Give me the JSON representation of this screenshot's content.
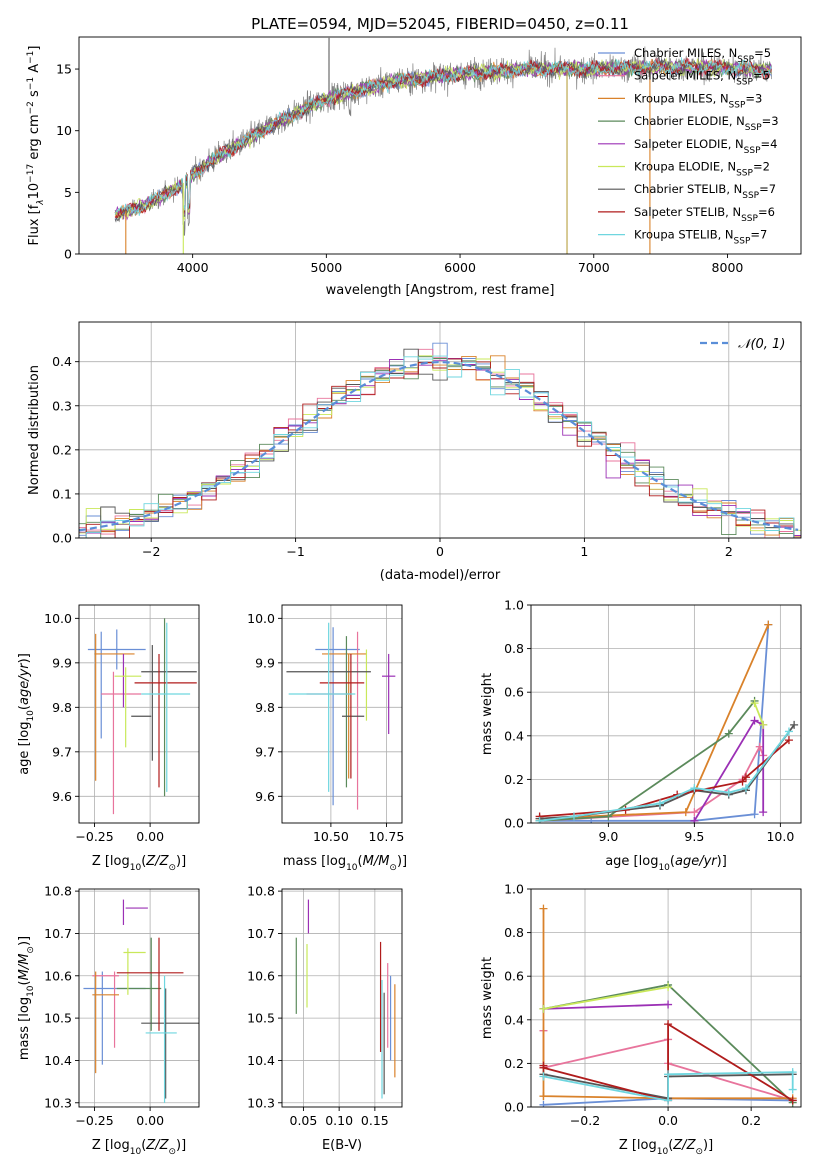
{
  "palette": {
    "Chabrier MILES": "#6a8fd6",
    "Salpeter MILES": "#e8749c",
    "Kroupa MILES": "#d9822b",
    "Chabrier ELODIE": "#5b8a5b",
    "Salpeter ELODIE": "#9b30b5",
    "Kroupa ELODIE": "#c9e85a",
    "Chabrier STELIB": "#555555",
    "Salpeter STELIB": "#b01c1c",
    "Kroupa STELIB": "#6fd6df"
  },
  "chart_data": [
    {
      "id": "spectrum",
      "type": "line",
      "title": "PLATE=0594, MJD=52045, FIBERID=0450, z=0.11",
      "xlabel": "wavelength [Angstrom, rest frame]",
      "ylabel_parts": {
        "flux": "Flux [f",
        "lambda": "λ",
        "exp": "10",
        "expsup": "−17",
        "units": " erg cm",
        "usup1": "−2",
        "s": " s",
        "usup2": "−1",
        "a": " A",
        "usup3": "−1",
        "close": "]"
      },
      "xlim": [
        3150,
        8550
      ],
      "ylim": [
        0,
        17.6
      ],
      "xticks": [
        4000,
        5000,
        6000,
        7000,
        8000
      ],
      "yticks": [
        0,
        5,
        10,
        15
      ],
      "data_range": [
        3420,
        8330
      ],
      "legend_position": "top-right",
      "legend": [
        {
          "label": "Chabrier MILES, N",
          "sub": "SSP",
          "suffix": "=5"
        },
        {
          "label": "Salpeter MILES, N",
          "sub": "SSP",
          "suffix": "=5"
        },
        {
          "label": "Kroupa MILES, N",
          "sub": "SSP",
          "suffix": "=3"
        },
        {
          "label": "Chabrier ELODIE, N",
          "sub": "SSP",
          "suffix": "=3"
        },
        {
          "label": "Salpeter ELODIE, N",
          "sub": "SSP",
          "suffix": "=4"
        },
        {
          "label": "Kroupa ELODIE, N",
          "sub": "SSP",
          "suffix": "=2"
        },
        {
          "label": "Chabrier STELIB, N",
          "sub": "SSP",
          "suffix": "=7"
        },
        {
          "label": "Salpeter STELIB, N",
          "sub": "SSP",
          "suffix": "=6"
        },
        {
          "label": "Kroupa STELIB, N",
          "sub": "SSP",
          "suffix": "=7"
        }
      ],
      "continuum_knots": [
        [
          3420,
          3.2
        ],
        [
          3650,
          4.0
        ],
        [
          3900,
          5.5
        ],
        [
          4100,
          7.3
        ],
        [
          4300,
          8.6
        ],
        [
          4600,
          10.5
        ],
        [
          5000,
          12.6
        ],
        [
          5500,
          14.0
        ],
        [
          6000,
          14.6
        ],
        [
          6500,
          15.0
        ],
        [
          7000,
          15.0
        ],
        [
          7500,
          15.2
        ],
        [
          8000,
          15.1
        ],
        [
          8330,
          14.9
        ]
      ]
    },
    {
      "id": "residuals",
      "type": "histogram",
      "xlabel": "(data-model)/error",
      "ylabel": "Normed distribution",
      "xlim": [
        -2.5,
        2.5
      ],
      "ylim": [
        0,
        0.49
      ],
      "xticks": [
        -2,
        -1,
        0,
        1,
        2
      ],
      "yticks": [
        0.0,
        0.1,
        0.2,
        0.3,
        0.4
      ],
      "grid": true,
      "legend_position": "top-right",
      "reference_label": "𝒩(0, 1)",
      "bin_width": 0.1
    },
    {
      "id": "age_vs_Z",
      "type": "errorbar",
      "xlabel": "Z [log₁₀(Z/Z☉)]",
      "ylabel": "age  [log₁₀(age/yr)]",
      "xlim": [
        -0.32,
        0.22
      ],
      "ylim": [
        9.54,
        10.03
      ],
      "xticks": [
        -0.25,
        0.0
      ],
      "yticks": [
        9.6,
        9.7,
        9.8,
        9.9,
        10.0
      ],
      "grid": true,
      "points": [
        {
          "m": "Chabrier MILES",
          "x": -0.15,
          "xerr": 0.13,
          "y": 9.93,
          "yerr": 0.045
        },
        {
          "m": "Chabrier MILES",
          "x": -0.22,
          "xerr": 0.005,
          "y": 9.85,
          "yerr": 0.12
        },
        {
          "m": "Salpeter MILES",
          "x": -0.13,
          "xerr": 0.09,
          "y": 9.83,
          "yerr": 0.0
        },
        {
          "m": "Salpeter MILES",
          "x": -0.165,
          "xerr": 0.005,
          "y": 9.72,
          "yerr": 0.16
        },
        {
          "m": "Kroupa MILES",
          "x": -0.16,
          "xerr": 0.09,
          "y": 9.92,
          "yerr": 0.0
        },
        {
          "m": "Kroupa MILES",
          "x": -0.245,
          "xerr": 0.005,
          "y": 9.8,
          "yerr": 0.165
        },
        {
          "m": "Chabrier ELODIE",
          "x": 0.065,
          "xerr": 0.005,
          "y": 9.8,
          "yerr": 0.2
        },
        {
          "m": "Salpeter ELODIE",
          "x": -0.12,
          "xerr": 0.005,
          "y": 9.86,
          "yerr": 0.06
        },
        {
          "m": "Kroupa ELODIE",
          "x": -0.1,
          "xerr": 0.06,
          "y": 9.87,
          "yerr": 0.0
        },
        {
          "m": "Kroupa ELODIE",
          "x": -0.11,
          "xerr": 0.005,
          "y": 9.8,
          "yerr": 0.09
        },
        {
          "m": "Chabrier STELIB",
          "x": 0.085,
          "xerr": 0.125,
          "y": 9.88,
          "yerr": 0.0
        },
        {
          "m": "Chabrier STELIB",
          "x": -0.04,
          "xerr": 0.045,
          "y": 9.78,
          "yerr": 0.0
        },
        {
          "m": "Chabrier STELIB",
          "x": 0.01,
          "xerr": 0.005,
          "y": 9.81,
          "yerr": 0.13
        },
        {
          "m": "Salpeter STELIB",
          "x": 0.07,
          "xerr": 0.14,
          "y": 9.855,
          "yerr": 0.0
        },
        {
          "m": "Salpeter STELIB",
          "x": 0.04,
          "xerr": 0.005,
          "y": 9.77,
          "yerr": 0.15
        },
        {
          "m": "Kroupa STELIB",
          "x": 0.07,
          "xerr": 0.11,
          "y": 9.83,
          "yerr": 0.0
        },
        {
          "m": "Kroupa STELIB",
          "x": 0.075,
          "xerr": 0.005,
          "y": 9.8,
          "yerr": 0.19
        }
      ]
    },
    {
      "id": "age_vs_mass",
      "type": "errorbar",
      "xlabel": "mass [log₁₀(M/M☉)]",
      "ylabel": "",
      "xlim": [
        10.28,
        10.82
      ],
      "ylim": [
        9.54,
        10.03
      ],
      "xticks": [
        10.5,
        10.75
      ],
      "yticks": [
        9.6,
        9.7,
        9.8,
        9.9,
        10.0
      ],
      "grid": true,
      "points": [
        {
          "m": "Chabrier MILES",
          "x": 10.53,
          "xerr": 0.1,
          "y": 9.93,
          "yerr": 0.0
        },
        {
          "m": "Chabrier MILES",
          "x": 10.51,
          "xerr": 0.005,
          "y": 9.78,
          "yerr": 0.2
        },
        {
          "m": "Salpeter MILES",
          "x": 10.49,
          "xerr": 0.1,
          "y": 9.83,
          "yerr": 0.0
        },
        {
          "m": "Salpeter MILES",
          "x": 10.62,
          "xerr": 0.005,
          "y": 9.77,
          "yerr": 0.2
        },
        {
          "m": "Kroupa MILES",
          "x": 10.56,
          "xerr": 0.1,
          "y": 9.92,
          "yerr": 0.0
        },
        {
          "m": "Kroupa MILES",
          "x": 10.58,
          "xerr": 0.005,
          "y": 9.78,
          "yerr": 0.14
        },
        {
          "m": "Chabrier ELODIE",
          "x": 10.57,
          "xerr": 0.005,
          "y": 9.79,
          "yerr": 0.17
        },
        {
          "m": "Salpeter ELODIE",
          "x": 10.76,
          "xerr": 0.03,
          "y": 9.87,
          "yerr": 0.0
        },
        {
          "m": "Salpeter ELODIE",
          "x": 10.76,
          "xerr": 0.005,
          "y": 9.83,
          "yerr": 0.09
        },
        {
          "m": "Kroupa ELODIE",
          "x": 10.66,
          "xerr": 0.005,
          "y": 9.85,
          "yerr": 0.08
        },
        {
          "m": "Chabrier STELIB",
          "x": 10.49,
          "xerr": 0.19,
          "y": 9.88,
          "yerr": 0.0
        },
        {
          "m": "Chabrier STELIB",
          "x": 10.6,
          "xerr": 0.05,
          "y": 9.78,
          "yerr": 0.0
        },
        {
          "m": "Salpeter STELIB",
          "x": 10.55,
          "xerr": 0.1,
          "y": 9.855,
          "yerr": 0.0
        },
        {
          "m": "Salpeter STELIB",
          "x": 10.59,
          "xerr": 0.005,
          "y": 9.78,
          "yerr": 0.14
        },
        {
          "m": "Kroupa STELIB",
          "x": 10.46,
          "xerr": 0.15,
          "y": 9.83,
          "yerr": 0.0
        },
        {
          "m": "Kroupa STELIB",
          "x": 10.49,
          "xerr": 0.005,
          "y": 9.8,
          "yerr": 0.19
        }
      ]
    },
    {
      "id": "weight_vs_age",
      "type": "line",
      "xlabel": "age  [log₁₀(age/yr)]",
      "ylabel": "mass weight",
      "xlim": [
        8.55,
        10.12
      ],
      "ylim": [
        0.0,
        1.0
      ],
      "xticks": [
        9.0,
        9.5,
        10.0
      ],
      "yticks": [
        0.0,
        0.2,
        0.4,
        0.6,
        0.8,
        1.0
      ],
      "grid": true,
      "series": [
        {
          "m": "Chabrier MILES",
          "x": [
            8.6,
            8.9,
            9.5,
            9.85,
            9.93
          ],
          "y": [
            0.01,
            0.01,
            0.01,
            0.04,
            0.91
          ]
        },
        {
          "m": "Salpeter MILES",
          "x": [
            8.6,
            9.5,
            9.78,
            9.88,
            9.9
          ],
          "y": [
            0.01,
            0.05,
            0.2,
            0.35,
            0.31
          ]
        },
        {
          "m": "Kroupa MILES",
          "x": [
            8.6,
            9.45,
            9.93
          ],
          "y": [
            0.02,
            0.05,
            0.91
          ]
        },
        {
          "m": "Chabrier ELODIE",
          "x": [
            8.6,
            9.0,
            9.7,
            9.85
          ],
          "y": [
            0.01,
            0.03,
            0.41,
            0.56
          ]
        },
        {
          "m": "Salpeter ELODIE",
          "x": [
            9.5,
            9.85,
            9.9,
            9.9
          ],
          "y": [
            0.01,
            0.47,
            0.45,
            0.05
          ]
        },
        {
          "m": "Kroupa ELODIE",
          "x": [
            9.85,
            9.9
          ],
          "y": [
            0.55,
            0.45
          ]
        },
        {
          "m": "Chabrier STELIB",
          "x": [
            8.6,
            8.8,
            9.3,
            9.5,
            9.7,
            9.8,
            10.08
          ],
          "y": [
            0.02,
            0.03,
            0.08,
            0.15,
            0.13,
            0.15,
            0.45
          ]
        },
        {
          "m": "Salpeter STELIB",
          "x": [
            8.6,
            9.1,
            9.4,
            9.78,
            9.8,
            10.05
          ],
          "y": [
            0.03,
            0.06,
            0.13,
            0.19,
            0.21,
            0.38
          ]
        },
        {
          "m": "Kroupa STELIB",
          "x": [
            8.6,
            8.8,
            9.3,
            9.5,
            9.7,
            9.8,
            10.05
          ],
          "y": [
            0.01,
            0.03,
            0.09,
            0.16,
            0.14,
            0.16,
            0.42
          ]
        }
      ]
    },
    {
      "id": "mass_vs_Z",
      "type": "errorbar",
      "xlabel": "Z [log₁₀(Z/Z☉)]",
      "ylabel": "mass [log₁₀(M/M☉)]",
      "xlim": [
        -0.32,
        0.22
      ],
      "ylim": [
        10.29,
        10.805
      ],
      "xticks": [
        -0.25,
        0.0
      ],
      "yticks": [
        10.3,
        10.4,
        10.5,
        10.6,
        10.7,
        10.8
      ],
      "grid": true,
      "points": [
        {
          "m": "Chabrier MILES",
          "x": -0.16,
          "xerr": 0.14,
          "y": 10.57,
          "yerr": 0.0
        },
        {
          "m": "Chabrier MILES",
          "x": -0.215,
          "xerr": 0.005,
          "y": 10.5,
          "yerr": 0.11
        },
        {
          "m": "Salpeter MILES",
          "x": -0.2,
          "xerr": 0.06,
          "y": 10.6,
          "yerr": 0.0
        },
        {
          "m": "Salpeter MILES",
          "x": -0.16,
          "xerr": 0.005,
          "y": 10.52,
          "yerr": 0.09
        },
        {
          "m": "Kroupa MILES",
          "x": -0.2,
          "xerr": 0.06,
          "y": 10.555,
          "yerr": 0.0
        },
        {
          "m": "Kroupa MILES",
          "x": -0.245,
          "xerr": 0.005,
          "y": 10.49,
          "yerr": 0.12
        },
        {
          "m": "Chabrier ELODIE",
          "x": -0.05,
          "xerr": 0.1,
          "y": 10.57,
          "yerr": 0.0
        },
        {
          "m": "Chabrier ELODIE",
          "x": 0.005,
          "xerr": 0.005,
          "y": 10.58,
          "yerr": 0.11
        },
        {
          "m": "Salpeter ELODIE",
          "x": -0.06,
          "xerr": 0.05,
          "y": 10.76,
          "yerr": 0.0
        },
        {
          "m": "Salpeter ELODIE",
          "x": -0.12,
          "xerr": 0.005,
          "y": 10.75,
          "yerr": 0.03
        },
        {
          "m": "Kroupa ELODIE",
          "x": -0.07,
          "xerr": 0.05,
          "y": 10.655,
          "yerr": 0.0
        },
        {
          "m": "Kroupa ELODIE",
          "x": -0.1,
          "xerr": 0.005,
          "y": 10.61,
          "yerr": 0.055
        },
        {
          "m": "Chabrier STELIB",
          "x": 0.09,
          "xerr": 0.13,
          "y": 10.488,
          "yerr": 0.0
        },
        {
          "m": "Chabrier STELIB",
          "x": 0.07,
          "xerr": 0.005,
          "y": 10.44,
          "yerr": 0.13
        },
        {
          "m": "Salpeter STELIB",
          "x": 0.0,
          "xerr": 0.15,
          "y": 10.607,
          "yerr": 0.0
        },
        {
          "m": "Salpeter STELIB",
          "x": 0.04,
          "xerr": 0.005,
          "y": 10.58,
          "yerr": 0.11
        },
        {
          "m": "Kroupa STELIB",
          "x": 0.05,
          "xerr": 0.07,
          "y": 10.465,
          "yerr": 0.0
        },
        {
          "m": "Kroupa STELIB",
          "x": 0.065,
          "xerr": 0.005,
          "y": 10.45,
          "yerr": 0.15
        }
      ]
    },
    {
      "id": "mass_vs_ebv",
      "type": "errorbar",
      "xlabel": "E(B-V)",
      "ylabel": "",
      "xlim": [
        0.02,
        0.188
      ],
      "ylim": [
        10.29,
        10.805
      ],
      "xticks": [
        0.05,
        0.1,
        0.15
      ],
      "yticks": [
        10.3,
        10.4,
        10.5,
        10.6,
        10.7,
        10.8
      ],
      "grid": true,
      "points": [
        {
          "m": "Chabrier MILES",
          "x": 0.172,
          "xerr": 0.0,
          "y": 10.5,
          "yerr": 0.1
        },
        {
          "m": "Salpeter MILES",
          "x": 0.168,
          "xerr": 0.0,
          "y": 10.53,
          "yerr": 0.1
        },
        {
          "m": "Kroupa MILES",
          "x": 0.178,
          "xerr": 0.0,
          "y": 10.47,
          "yerr": 0.11
        },
        {
          "m": "Chabrier ELODIE",
          "x": 0.04,
          "xerr": 0.0,
          "y": 10.6,
          "yerr": 0.09
        },
        {
          "m": "Salpeter ELODIE",
          "x": 0.057,
          "xerr": 0.0,
          "y": 10.74,
          "yerr": 0.04
        },
        {
          "m": "Kroupa ELODIE",
          "x": 0.055,
          "xerr": 0.0,
          "y": 10.6,
          "yerr": 0.075
        },
        {
          "m": "Chabrier STELIB",
          "x": 0.163,
          "xerr": 0.0,
          "y": 10.44,
          "yerr": 0.12
        },
        {
          "m": "Salpeter STELIB",
          "x": 0.158,
          "xerr": 0.0,
          "y": 10.55,
          "yerr": 0.13
        },
        {
          "m": "Kroupa STELIB",
          "x": 0.16,
          "xerr": 0.0,
          "y": 10.45,
          "yerr": 0.14
        }
      ]
    },
    {
      "id": "weight_vs_Z",
      "type": "line",
      "xlabel": "Z [log₁₀(Z/Z☉)]",
      "ylabel": "mass weight",
      "xlim": [
        -0.33,
        0.32
      ],
      "ylim": [
        0.0,
        1.0
      ],
      "xticks": [
        -0.2,
        0.0,
        0.2
      ],
      "yticks": [
        0.0,
        0.2,
        0.4,
        0.6,
        0.8,
        1.0
      ],
      "grid": true,
      "series": [
        {
          "m": "Chabrier MILES",
          "x": [
            -0.3,
            0.0,
            0.3
          ],
          "y": [
            0.01,
            0.04,
            0.03
          ]
        },
        {
          "m": "Salpeter MILES",
          "x": [
            -0.3,
            -0.3,
            0.0,
            0.0,
            0.3
          ],
          "y": [
            0.35,
            0.18,
            0.31,
            0.2,
            0.03
          ]
        },
        {
          "m": "Kroupa MILES",
          "x": [
            -0.3,
            -0.3,
            -0.3,
            0.0,
            0.3
          ],
          "y": [
            0.91,
            0.05,
            0.05,
            0.04,
            0.04
          ]
        },
        {
          "m": "Chabrier ELODIE",
          "x": [
            -0.3,
            0.0,
            0.3
          ],
          "y": [
            0.45,
            0.56,
            0.02
          ]
        },
        {
          "m": "Salpeter ELODIE",
          "x": [
            -0.3,
            0.0
          ],
          "y": [
            0.45,
            0.47
          ]
        },
        {
          "m": "Kroupa ELODIE",
          "x": [
            -0.3,
            0.0
          ],
          "y": [
            0.45,
            0.55
          ]
        },
        {
          "m": "Chabrier STELIB",
          "x": [
            -0.3,
            0.0,
            0.0,
            0.3
          ],
          "y": [
            0.15,
            0.04,
            0.14,
            0.15
          ]
        },
        {
          "m": "Salpeter STELIB",
          "x": [
            -0.3,
            -0.3,
            0.0,
            0.0,
            0.3
          ],
          "y": [
            0.19,
            0.18,
            0.03,
            0.38,
            0.03
          ]
        },
        {
          "m": "Kroupa STELIB",
          "x": [
            -0.3,
            0.0,
            0.0,
            0.3,
            0.3
          ],
          "y": [
            0.14,
            0.03,
            0.15,
            0.16,
            0.08
          ]
        }
      ]
    }
  ]
}
